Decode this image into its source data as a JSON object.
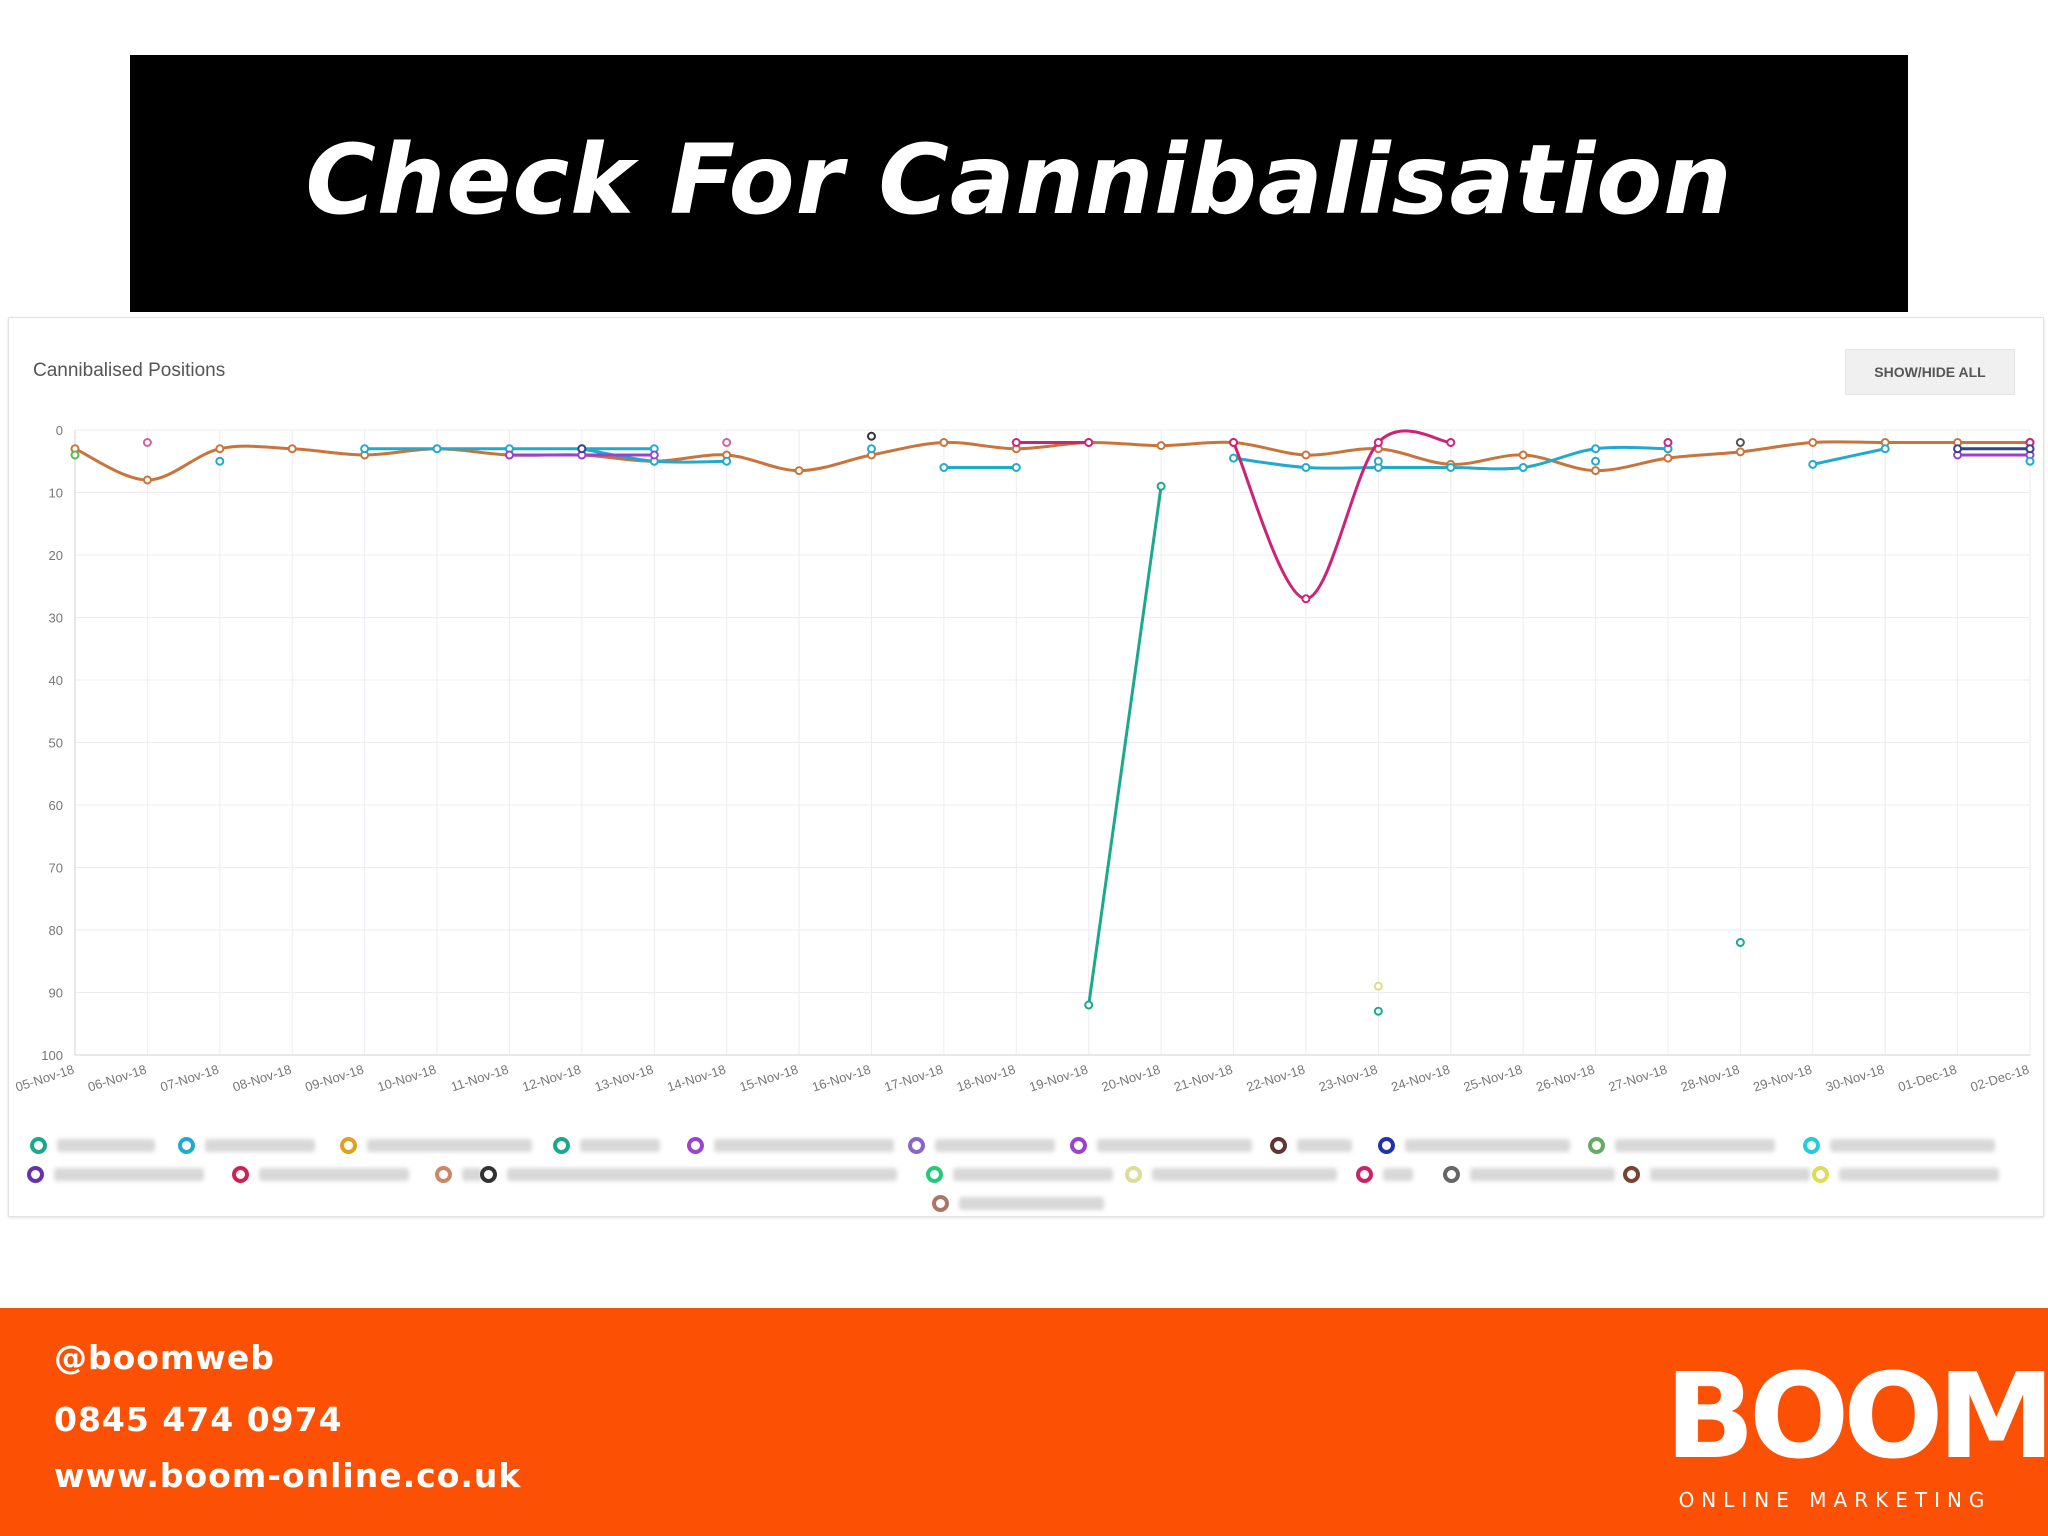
{
  "slide": {
    "title": "Check For Cannibalisation"
  },
  "panel": {
    "title": "Cannibalised Positions",
    "show_hide_label": "SHOW/HIDE ALL"
  },
  "footer": {
    "handle": "@boomweb",
    "phone": "0845 474 0974",
    "website": "www.boom-online.co.uk",
    "logo_text": "BOOM",
    "logo_subtitle": "ONLINE MARKETING"
  },
  "colors": {
    "footer_bg": "#fc5104",
    "title_bg": "#000000",
    "grid": "#ececf2"
  },
  "chart_data": {
    "type": "line",
    "title": "Cannibalised Positions",
    "categories": [
      "05-Nov-18",
      "06-Nov-18",
      "07-Nov-18",
      "08-Nov-18",
      "09-Nov-18",
      "10-Nov-18",
      "11-Nov-18",
      "12-Nov-18",
      "13-Nov-18",
      "14-Nov-18",
      "15-Nov-18",
      "16-Nov-18",
      "17-Nov-18",
      "18-Nov-18",
      "19-Nov-18",
      "20-Nov-18",
      "21-Nov-18",
      "22-Nov-18",
      "23-Nov-18",
      "24-Nov-18",
      "25-Nov-18",
      "26-Nov-18",
      "27-Nov-18",
      "28-Nov-18",
      "29-Nov-18",
      "30-Nov-18",
      "01-Dec-18",
      "02-Dec-18"
    ],
    "y_ticks": [
      0,
      10,
      20,
      30,
      40,
      50,
      60,
      70,
      80,
      90,
      100
    ],
    "ylim": [
      0,
      100
    ],
    "y_inverted": true,
    "grid": true,
    "legend_position": "bottom",
    "series": [
      {
        "color": "#c8743c",
        "values": [
          3,
          8,
          3,
          3,
          4,
          3,
          4,
          4,
          5,
          4,
          6.5,
          4,
          2,
          3,
          2,
          2.5,
          2,
          4,
          3,
          5.5,
          4,
          6.5,
          4.5,
          3.5,
          2,
          2,
          2,
          2
        ]
      },
      {
        "color": "#22aacc",
        "values": [
          null,
          null,
          null,
          null,
          3,
          3,
          3,
          3,
          3,
          null,
          null,
          3,
          null,
          null,
          null,
          null,
          null,
          null,
          null,
          null,
          null,
          null,
          3,
          null,
          null,
          null,
          null,
          null
        ]
      },
      {
        "color": "#22aacc",
        "values": [
          null,
          null,
          null,
          null,
          null,
          null,
          null,
          3,
          5,
          5,
          null,
          null,
          6,
          6,
          null,
          null,
          4.5,
          6,
          6,
          6,
          6,
          3,
          3,
          null,
          5.5,
          3,
          null,
          null
        ]
      },
      {
        "color": "#1aa98c",
        "values": [
          null,
          null,
          null,
          null,
          null,
          null,
          null,
          null,
          null,
          null,
          null,
          null,
          null,
          null,
          92,
          9,
          null,
          null,
          null,
          null,
          null,
          null,
          null,
          null,
          null,
          null,
          null,
          3
        ]
      },
      {
        "color": "#cc2277",
        "values": [
          null,
          null,
          null,
          null,
          null,
          null,
          null,
          null,
          null,
          null,
          null,
          null,
          null,
          2,
          2,
          null,
          2,
          27,
          2,
          2,
          null,
          null,
          2,
          null,
          null,
          null,
          null,
          2
        ]
      },
      {
        "color": "#9a44cc",
        "values": [
          null,
          null,
          null,
          null,
          null,
          null,
          4,
          4,
          4,
          null,
          null,
          null,
          null,
          null,
          null,
          null,
          null,
          null,
          null,
          null,
          null,
          null,
          null,
          null,
          null,
          null,
          4,
          4
        ]
      },
      {
        "color": "#334488",
        "values": [
          null,
          null,
          null,
          null,
          null,
          null,
          null,
          3,
          null,
          null,
          null,
          null,
          null,
          null,
          null,
          null,
          null,
          null,
          null,
          null,
          null,
          null,
          null,
          null,
          null,
          null,
          3,
          3
        ]
      }
    ],
    "scatter_points": [
      {
        "color": "#22aacc",
        "x": "07-Nov-18",
        "y": 5
      },
      {
        "color": "#cc6699",
        "x": "06-Nov-18",
        "y": 2
      },
      {
        "color": "#cc6699",
        "x": "14-Nov-18",
        "y": 2
      },
      {
        "color": "#333333",
        "x": "16-Nov-18",
        "y": 1
      },
      {
        "color": "#1aa98c",
        "x": "23-Nov-18",
        "y": 93
      },
      {
        "color": "#dddd88",
        "x": "23-Nov-18",
        "y": 89
      },
      {
        "color": "#1aa98c",
        "x": "28-Nov-18",
        "y": 82
      },
      {
        "color": "#555555",
        "x": "28-Nov-18",
        "y": 2
      },
      {
        "color": "#22aacc",
        "x": "26-Nov-18",
        "y": 5
      },
      {
        "color": "#22aacc",
        "x": "23-Nov-18",
        "y": 5
      },
      {
        "color": "#22aacc",
        "x": "02-Dec-18",
        "y": 5
      },
      {
        "color": "#55bb55",
        "x": "05-Nov-18",
        "y": 4
      }
    ]
  },
  "legend": {
    "items": [
      {
        "color": "#1aa98c",
        "blur": 98
      },
      {
        "color": "#22aacc",
        "blur": 110
      },
      {
        "color": "#e0a020",
        "blur": 165
      },
      {
        "color": "#1aa98c",
        "blur": 80
      },
      {
        "color": "#9a44cc",
        "blur": 180
      },
      {
        "color": "#8866cc",
        "blur": 120
      },
      {
        "color": "#9a44cc",
        "blur": 155
      },
      {
        "color": "#663333",
        "blur": 55
      },
      {
        "color": "#2233aa",
        "blur": 165
      },
      {
        "color": "#66aa66",
        "blur": 160
      },
      {
        "color": "#22ccdd",
        "blur": 165
      },
      {
        "color": "#6633aa",
        "blur": 150
      },
      {
        "color": "#cc2255",
        "blur": 150
      },
      {
        "color": "#cc8866",
        "blur": 20
      },
      {
        "color": "#333333",
        "blur": 390
      },
      {
        "color": "#22cc77",
        "blur": 160
      },
      {
        "color": "#dddd99",
        "blur": 185
      },
      {
        "color": "#cc2266",
        "blur": 30
      },
      {
        "color": "#666666",
        "blur": 145
      },
      {
        "color": "#774433",
        "blur": 160
      },
      {
        "color": "#dddd55",
        "blur": 160
      },
      {
        "color": "#aa7766",
        "blur": 145
      }
    ]
  }
}
